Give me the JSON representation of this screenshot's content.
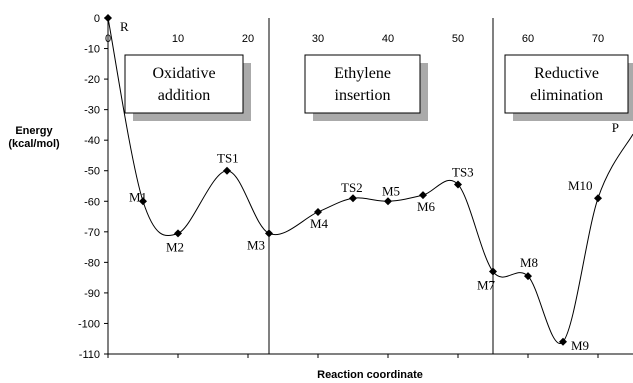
{
  "chart_data": {
    "type": "line",
    "xlabel": "Reaction coordinate",
    "ylabel_lines": [
      "Energy",
      "(kcal/mol)"
    ],
    "xlim": [
      0,
      75
    ],
    "ylim": [
      -110,
      0
    ],
    "xticks": [
      0,
      10,
      20,
      30,
      40,
      50,
      60,
      70
    ],
    "yticks": [
      0,
      -10,
      -20,
      -30,
      -40,
      -50,
      -60,
      -70,
      -80,
      -90,
      -100,
      -110
    ],
    "grid": false,
    "points": [
      {
        "label": "R",
        "x": 0,
        "y": 0
      },
      {
        "label": "M1",
        "x": 5,
        "y": -60
      },
      {
        "label": "M2",
        "x": 10,
        "y": -70.5
      },
      {
        "label": "TS1",
        "x": 17,
        "y": -50
      },
      {
        "label": "M3",
        "x": 23,
        "y": -70.5
      },
      {
        "label": "M4",
        "x": 30,
        "y": -63.5
      },
      {
        "label": "TS2",
        "x": 35,
        "y": -59
      },
      {
        "label": "M5",
        "x": 40,
        "y": -60
      },
      {
        "label": "M6",
        "x": 45,
        "y": -58
      },
      {
        "label": "TS3",
        "x": 50,
        "y": -54.5
      },
      {
        "label": "M7",
        "x": 55,
        "y": -83
      },
      {
        "label": "M8",
        "x": 60,
        "y": -84.5
      },
      {
        "label": "M9",
        "x": 65,
        "y": -106
      },
      {
        "label": "M10",
        "x": 70,
        "y": -59
      },
      {
        "label": "P",
        "x": 75,
        "y": -38
      }
    ],
    "region_dividers_x": [
      23,
      55
    ],
    "regions": [
      {
        "lines": [
          "Oxidative",
          "addition"
        ]
      },
      {
        "lines": [
          "Ethylene",
          "insertion"
        ]
      },
      {
        "lines": [
          "Reductive",
          "elimination"
        ]
      }
    ]
  }
}
